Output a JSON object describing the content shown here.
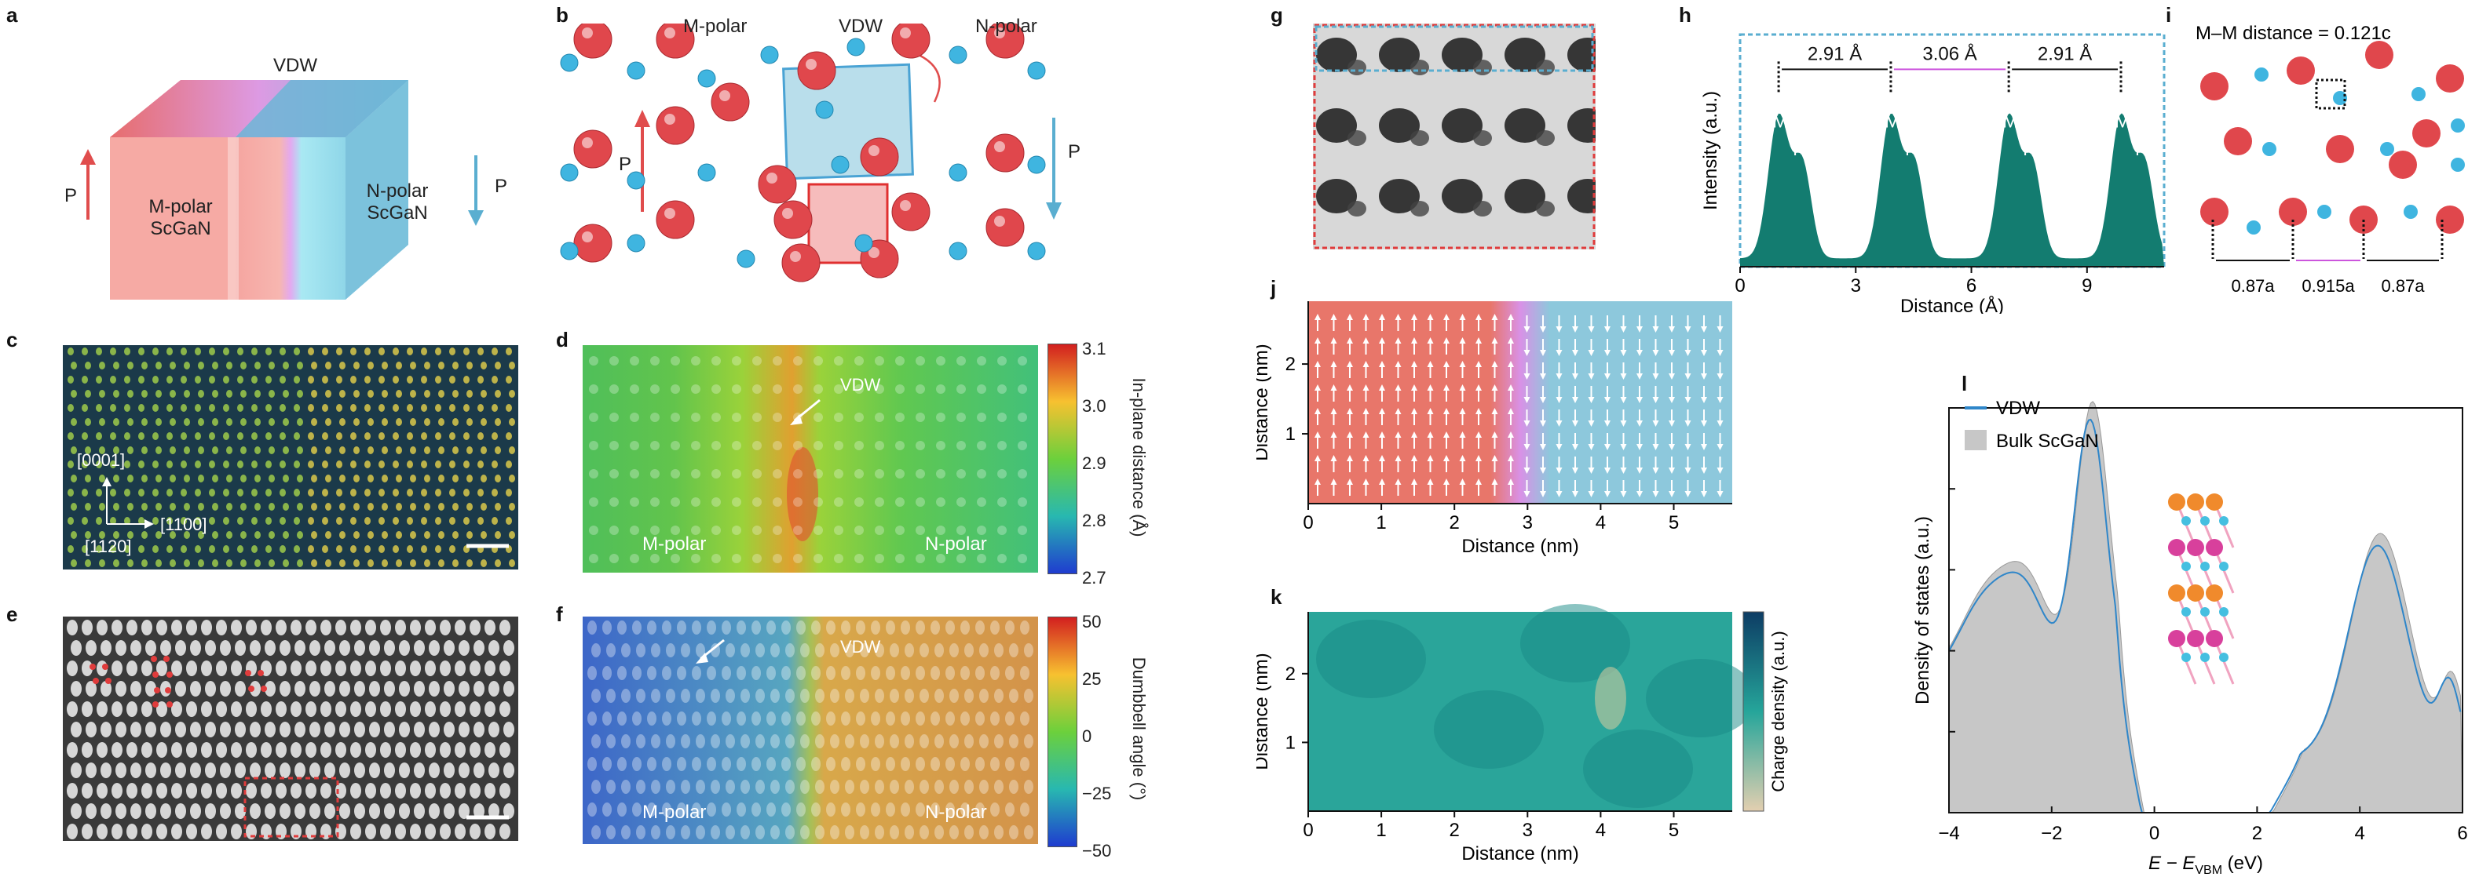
{
  "colors": {
    "red": "#e04d4d",
    "blue": "#5aaed0",
    "teal": "#137c70",
    "magenta": "#cc55dd",
    "lineBlue": "#2f86c9",
    "grey": "#c7c7c7"
  },
  "labels": {
    "a": "a",
    "b": "b",
    "c": "c",
    "d": "d",
    "e": "e",
    "f": "f",
    "g": "g",
    "h": "h",
    "i": "i",
    "j": "j",
    "k": "k",
    "l": "l"
  },
  "a": {
    "vdw": "VDW",
    "p_left": "P",
    "p_right": "P",
    "mpolar_1": "M-polar",
    "mpolar_2": "ScGaN",
    "npolar_1": "N-polar",
    "npolar_2": "ScGaN"
  },
  "b": {
    "m_polar": "M-polar",
    "vdw": "VDW",
    "n_polar": "N-polar",
    "p_left": "P",
    "p_right": "P"
  },
  "c": {
    "dir1": "[0001]",
    "dir2": "[1100]",
    "dir3": "[1120]"
  },
  "d": {
    "vdw": "VDW",
    "m_polar": "M-polar",
    "n_polar": "N-polar",
    "cbar_title": "In-plane distance (Å)",
    "cbar_ticks": [
      "3.1",
      "3.0",
      "2.9",
      "2.8",
      "2.7"
    ]
  },
  "f": {
    "vdw": "VDW",
    "m_polar": "M-polar",
    "n_polar": "N-polar",
    "cbar_title": "Dumbbell angle (°)",
    "cbar_ticks": [
      "50",
      "25",
      "0",
      "−25",
      "−50"
    ]
  },
  "i": {
    "title": "M–M distance = 0.121c",
    "d1": "0.87a",
    "d2": "0.915a",
    "d3": "0.87a"
  },
  "chart_data": [
    {
      "type": "line",
      "panel": "h",
      "xlabel": "Distance (Å)",
      "ylabel": "Intensity (a.u.)",
      "x_ticks": [
        "0",
        "3",
        "6",
        "9"
      ],
      "xlim": [
        0,
        11
      ],
      "peaks": [
        1.0,
        3.91,
        6.97,
        9.88
      ],
      "spacings": [
        "2.91 Å",
        "3.06 Å",
        "2.91 Å"
      ],
      "peak_labels": [
        "M",
        "N"
      ]
    },
    {
      "type": "heatmap",
      "panel": "j",
      "xlabel": "Distance (nm)",
      "ylabel": "Distance (nm)",
      "x_ticks": [
        "0",
        "1",
        "2",
        "3",
        "4",
        "5"
      ],
      "y_ticks": [
        "1",
        "2"
      ],
      "xlim": [
        0,
        5.8
      ],
      "ylim": [
        0,
        2.9
      ]
    },
    {
      "type": "heatmap",
      "panel": "k",
      "xlabel": "Distance (nm)",
      "ylabel": "Distance (nm)",
      "x_ticks": [
        "0",
        "1",
        "2",
        "3",
        "4",
        "5"
      ],
      "y_ticks": [
        "1",
        "2"
      ],
      "xlim": [
        0,
        5.8
      ],
      "ylim": [
        0,
        2.9
      ],
      "cbar_title": "Charge density (a.u.)"
    },
    {
      "type": "area",
      "panel": "l",
      "xlabel": "E − E",
      "xlabel_sub": "VBM",
      "xlabel_unit": " (eV)",
      "ylabel": "Density of states (a.u.)",
      "x_ticks": [
        "−4",
        "−2",
        "0",
        "2",
        "4",
        "6"
      ],
      "xlim": [
        -4,
        6
      ],
      "series": [
        {
          "name": "VDW",
          "style": "line"
        },
        {
          "name": "Bulk ScGaN",
          "style": "area"
        }
      ]
    }
  ]
}
